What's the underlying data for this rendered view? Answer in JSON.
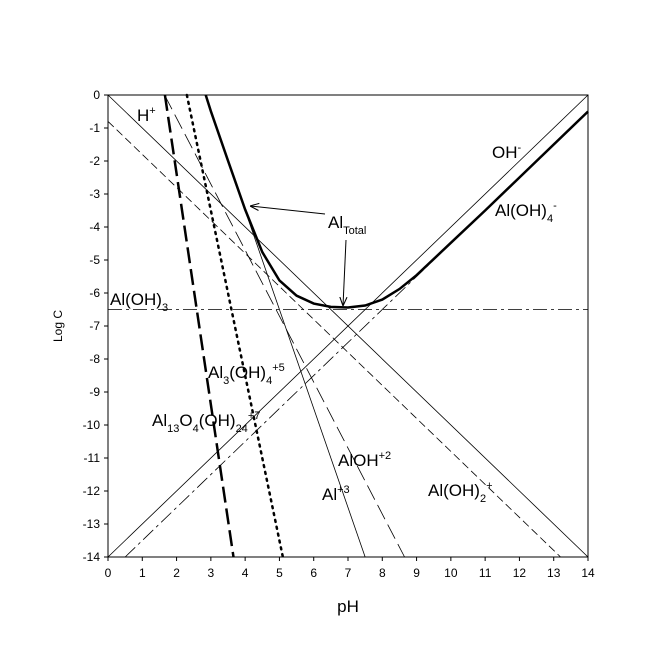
{
  "chart_data": {
    "type": "line",
    "x_label": "pH",
    "y_label": "Log C",
    "xlim": [
      0,
      14
    ],
    "ylim": [
      -14,
      0
    ],
    "xticks": [
      0,
      1,
      2,
      3,
      4,
      5,
      6,
      7,
      8,
      9,
      10,
      11,
      12,
      13,
      14
    ],
    "yticks": [
      0,
      -1,
      -2,
      -3,
      -4,
      -5,
      -6,
      -7,
      -8,
      -9,
      -10,
      -11,
      -12,
      -13,
      -14
    ],
    "color": "#000000",
    "series": [
      {
        "x": [
          0,
          14
        ],
        "values": [
          0,
          -14
        ],
        "style": "solid",
        "width": 0.8
      },
      {
        "x": [
          0,
          14
        ],
        "values": [
          -14,
          0
        ],
        "style": "solid",
        "width": 0.8
      },
      {
        "x": [
          0.5,
          14
        ],
        "values": [
          -14,
          -0.5
        ],
        "style": "dashdot",
        "width": 0.8
      },
      {
        "x": [
          0,
          13.2
        ],
        "values": [
          -0.8,
          -14
        ],
        "style": "dash",
        "width": 0.8
      },
      {
        "x": [
          1.65,
          8.65
        ],
        "values": [
          0,
          -14
        ],
        "style": "longdash",
        "width": 0.8
      },
      {
        "x": [
          2.85,
          7.5
        ],
        "values": [
          -0.05,
          -14
        ],
        "style": "solid",
        "width": 0.8
      },
      {
        "x": [
          0,
          14
        ],
        "values": [
          -6.5,
          -6.5
        ],
        "style": "dashdot",
        "width": 0.8
      },
      {
        "x": [
          2.3,
          5.1
        ],
        "values": [
          0,
          -14
        ],
        "style": "dot",
        "width": 2.5
      },
      {
        "x": [
          1.66,
          3.66
        ],
        "values": [
          0,
          -14
        ],
        "style": "longdash",
        "width": 2.5
      },
      {
        "x": [
          2.85,
          3,
          3.5,
          4,
          4.5,
          5,
          5.5,
          6,
          6.5,
          7,
          7.5,
          8,
          8.5,
          9,
          10,
          11,
          12,
          14
        ],
        "values": [
          0,
          -0.49,
          -1.99,
          -3.47,
          -4.76,
          -5.62,
          -6.08,
          -6.32,
          -6.42,
          -6.44,
          -6.38,
          -6.2,
          -5.88,
          -5.46,
          -4.48,
          -3.5,
          -2.5,
          -0.5
        ],
        "style": "solid",
        "width": 2.5
      }
    ],
    "annotations": [
      {
        "segments": [
          {
            "text": "H"
          },
          {
            "text": "+",
            "shift": "sup"
          }
        ]
      },
      {
        "segments": [
          {
            "text": "OH"
          },
          {
            "text": "-",
            "shift": "sup"
          }
        ]
      },
      {
        "segments": [
          {
            "text": "Al(OH)"
          },
          {
            "text": "4",
            "shift": "sub"
          },
          {
            "text": "-",
            "shift": "sup"
          }
        ]
      },
      {
        "segments": [
          {
            "text": "Al"
          },
          {
            "text": "Total",
            "shift": "sub"
          }
        ]
      },
      {
        "segments": [
          {
            "text": "Al(OH)"
          },
          {
            "text": "3",
            "shift": "sub"
          }
        ]
      },
      {
        "segments": [
          {
            "text": "Al"
          },
          {
            "text": "3",
            "shift": "sub"
          },
          {
            "text": "(OH)"
          },
          {
            "text": "4",
            "shift": "sub"
          },
          {
            "text": "+5",
            "shift": "sup"
          }
        ]
      },
      {
        "segments": [
          {
            "text": "Al"
          },
          {
            "text": "13",
            "shift": "sub"
          },
          {
            "text": "O"
          },
          {
            "text": "4",
            "shift": "sub"
          },
          {
            "text": "(OH)"
          },
          {
            "text": "24",
            "shift": "sub"
          },
          {
            "text": "+7",
            "shift": "sup"
          }
        ]
      },
      {
        "segments": [
          {
            "text": "AlOH"
          },
          {
            "text": "+2",
            "shift": "sup"
          }
        ]
      },
      {
        "segments": [
          {
            "text": "Al"
          },
          {
            "text": "+3",
            "shift": "sup"
          }
        ]
      },
      {
        "segments": [
          {
            "text": "Al(OH)"
          },
          {
            "text": "2",
            "shift": "sub"
          },
          {
            "text": "+",
            "shift": "sup"
          }
        ]
      }
    ]
  }
}
